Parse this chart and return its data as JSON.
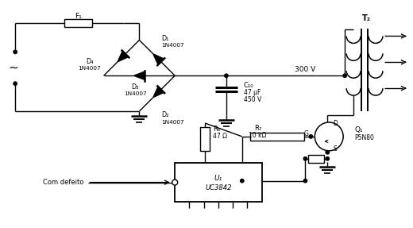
{
  "bg_color": "#ffffff",
  "line_color": "#000000",
  "components": {
    "fuse_label": "F₁",
    "d1_label": "D₁",
    "d2_label": "D₂",
    "d3_label": "D₃",
    "d4_label": "D₄",
    "c10_label": "C₁₀",
    "c10_val1": "47 μF",
    "c10_val2": "450 V",
    "r6_label": "R₆",
    "r6_val": "47 Ω",
    "r7_label": "R₇",
    "r7_val": "10 kΩ",
    "u1_label": "U₁",
    "u1_val": "UC3842",
    "q1_label": "Q₁",
    "q1_val": "P5N80",
    "t2_label": "T₂",
    "voltage_label": "300 V",
    "com_defeito_label": "Com defeito",
    "diode_val": "1N4007",
    "g_label": "G",
    "d_label": "D",
    "s_label": "S"
  }
}
